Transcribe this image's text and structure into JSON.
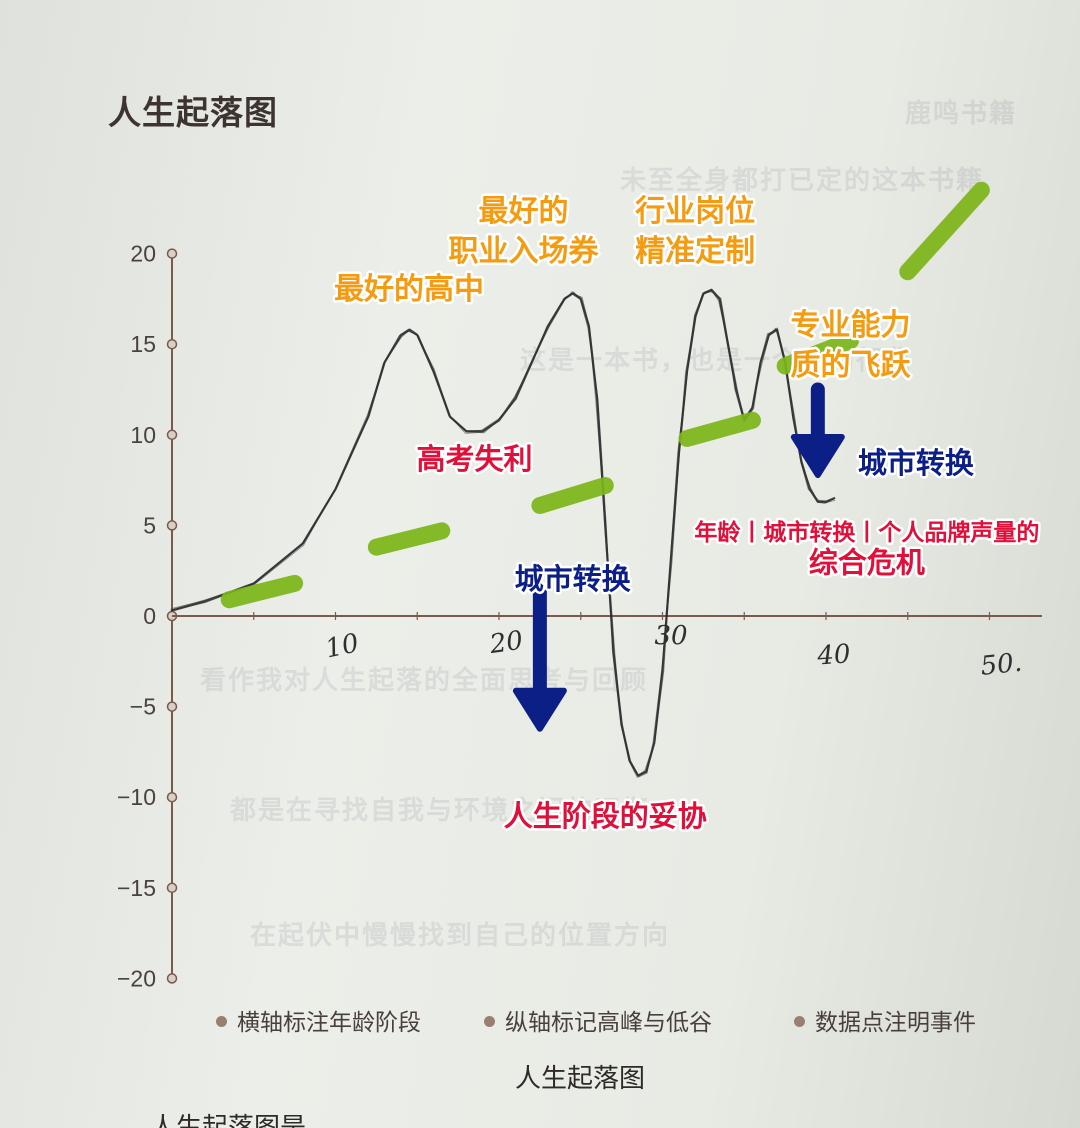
{
  "page": {
    "title": "人生起落图",
    "caption": "人生起落图",
    "cutoff_text": "人生起落图是"
  },
  "legend": [
    {
      "label": "横轴标注年龄阶段"
    },
    {
      "label": "纵轴标记高峰与低谷"
    },
    {
      "label": "数据点注明事件"
    }
  ],
  "colors": {
    "axis": "#7a5a48",
    "curve": "#2f2f2f",
    "green_marker": "#7cb518",
    "orange_text": "#f39c12",
    "red_text": "#e0103b",
    "blue_text": "#0c1f86"
  },
  "chart_data": {
    "type": "line",
    "title": "人生起落图",
    "xlabel": "",
    "ylabel": "",
    "ylim": [
      -20,
      20
    ],
    "xlim": [
      0,
      53
    ],
    "y_ticks": [
      "20",
      "15",
      "10",
      "5",
      "0",
      "−5",
      "−10",
      "−15",
      "−20"
    ],
    "x_ticks_handwritten": [
      "10",
      "20",
      "30",
      "40",
      "50."
    ],
    "grid": false,
    "series": [
      {
        "style": "hand-drawn pencil",
        "points": [
          [
            0,
            0.3
          ],
          [
            2,
            0.8
          ],
          [
            5,
            1.8
          ],
          [
            8,
            4
          ],
          [
            10,
            7
          ],
          [
            12,
            11
          ],
          [
            13,
            14
          ],
          [
            14,
            15.5
          ],
          [
            14.5,
            15.8
          ],
          [
            15,
            15.5
          ],
          [
            16,
            13.5
          ],
          [
            17,
            11
          ],
          [
            18,
            10.2
          ],
          [
            19,
            10.2
          ],
          [
            20,
            10.8
          ],
          [
            21,
            12
          ],
          [
            22,
            14
          ],
          [
            23,
            16
          ],
          [
            24,
            17.5
          ],
          [
            24.5,
            17.8
          ],
          [
            25,
            17.5
          ],
          [
            25.5,
            16
          ],
          [
            26,
            12
          ],
          [
            26.5,
            5
          ],
          [
            27,
            -2
          ],
          [
            27.5,
            -6
          ],
          [
            28,
            -8
          ],
          [
            28.5,
            -8.8
          ],
          [
            29,
            -8.6
          ],
          [
            29.5,
            -7
          ],
          [
            30,
            -3
          ],
          [
            30.5,
            3
          ],
          [
            31,
            9
          ],
          [
            31.5,
            13.5
          ],
          [
            32,
            16.5
          ],
          [
            32.5,
            17.8
          ],
          [
            33,
            18
          ],
          [
            33.5,
            17.5
          ],
          [
            34,
            15
          ],
          [
            34.5,
            12.5
          ],
          [
            35,
            10.8
          ],
          [
            35.5,
            11.5
          ],
          [
            36,
            14
          ],
          [
            36.5,
            15.5
          ],
          [
            37,
            15.8
          ],
          [
            37.5,
            14
          ],
          [
            38,
            11
          ],
          [
            38.5,
            8.5
          ],
          [
            39,
            7
          ],
          [
            39.5,
            6.3
          ],
          [
            40,
            6.3
          ],
          [
            40.5,
            6.5
          ]
        ]
      }
    ],
    "trend_markers": {
      "name": "",
      "color": "#7cb518",
      "segments": [
        [
          [
            3.5,
            0.9
          ],
          [
            7.5,
            1.8
          ]
        ],
        [
          [
            12.5,
            3.8
          ],
          [
            16.5,
            4.7
          ]
        ],
        [
          [
            22.5,
            6.1
          ],
          [
            26.5,
            7.2
          ]
        ],
        [
          [
            31.5,
            9.8
          ],
          [
            35.5,
            10.8
          ]
        ],
        [
          [
            37.5,
            13.8
          ],
          [
            41.5,
            15.2
          ]
        ],
        [
          [
            45,
            19
          ],
          [
            49.5,
            23.5
          ]
        ]
      ]
    },
    "annotations": [
      {
        "text": "最好的高中",
        "color": "orange",
        "x": 14.5,
        "y": 17.5
      },
      {
        "text": "最好的",
        "color": "orange",
        "x": 21.5,
        "y": 21.8
      },
      {
        "text": "职业入场券",
        "color": "orange",
        "x": 21.5,
        "y": 19.6
      },
      {
        "text": "行业岗位",
        "color": "orange",
        "x": 32,
        "y": 21.8
      },
      {
        "text": "精准定制",
        "color": "orange",
        "x": 32,
        "y": 19.6
      },
      {
        "text": "专业能力",
        "color": "orange",
        "x": 41.5,
        "y": 15.5
      },
      {
        "text": "质的飞跃",
        "color": "orange",
        "x": 41.5,
        "y": 13.3
      },
      {
        "text": "高考失利",
        "color": "red",
        "x": 18.5,
        "y": 8.1
      },
      {
        "text": "人生阶段的妥协",
        "color": "red",
        "x": 26.5,
        "y": -11.6
      },
      {
        "text": "年龄丨城市转换丨个人品牌声量的",
        "color": "red",
        "x": 42.5,
        "y": 4.2
      },
      {
        "text": "综合危机",
        "color": "red",
        "x": 42.5,
        "y": 2.4
      },
      {
        "text": "城市转换",
        "color": "blue",
        "x": 24.5,
        "y": 1.5
      },
      {
        "text": "城市转换",
        "color": "blue",
        "x": 45.5,
        "y": 7.9
      }
    ],
    "arrows": [
      {
        "color": "blue",
        "from": [
          22.5,
          1.5
        ],
        "to": [
          22.5,
          -6
        ]
      },
      {
        "color": "blue",
        "from": [
          39.5,
          12.5
        ],
        "to": [
          39.5,
          8
        ]
      }
    ]
  }
}
